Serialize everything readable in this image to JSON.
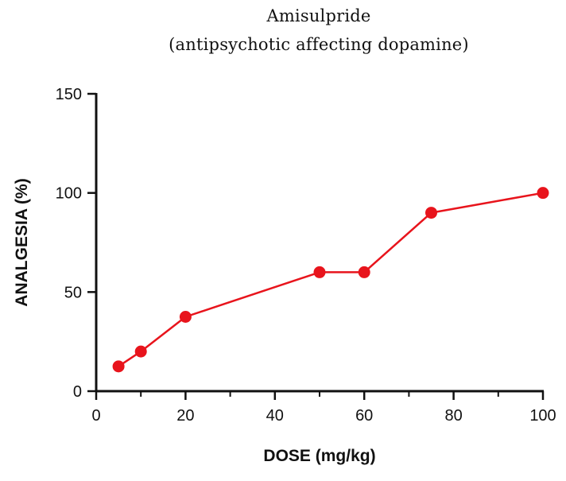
{
  "chart_data": {
    "type": "line",
    "title_lines": [
      "Amisulpride",
      "(antipsychotic affecting dopamine)"
    ],
    "xlabel": "DOSE (mg/kg)",
    "ylabel": "ANALGESIA (%)",
    "xlim": [
      0,
      100
    ],
    "ylim": [
      0,
      150
    ],
    "x_ticks": [
      0,
      20,
      40,
      60,
      80,
      100
    ],
    "x_minor_ticks": [
      10,
      30,
      50,
      70,
      90
    ],
    "y_ticks": [
      0,
      50,
      100,
      150
    ],
    "grid": false,
    "series": [
      {
        "color": "#e8141c",
        "x": [
          5,
          10,
          20,
          50,
          60,
          75,
          100
        ],
        "y": [
          12.5,
          20,
          37.5,
          60,
          60,
          90,
          100
        ]
      }
    ]
  }
}
